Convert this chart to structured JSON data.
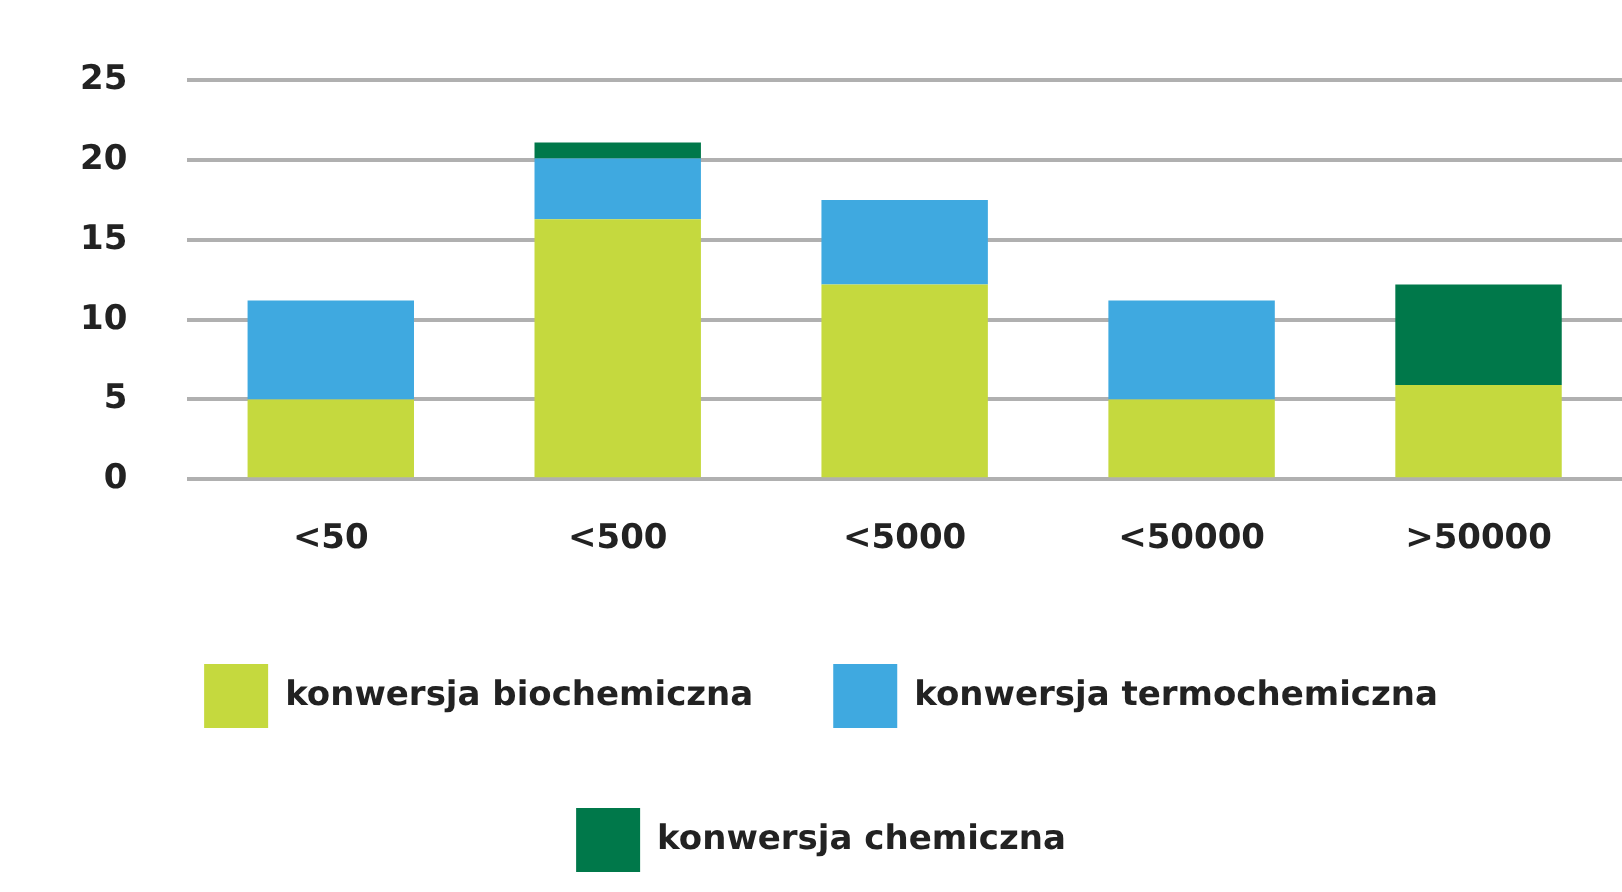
{
  "chart_data": {
    "type": "bar",
    "stacked": true,
    "categories": [
      "<50",
      "<500",
      "<5000",
      "<50000",
      ">50000"
    ],
    "series": [
      {
        "name": "konwersja biochemiczna",
        "color": "#c5d93e",
        "values": [
          5,
          16.3,
          12.2,
          5,
          5.9
        ]
      },
      {
        "name": "konwersja termochemiczna",
        "color": "#3fa9e0",
        "values": [
          6.2,
          3.8,
          5.3,
          6.2,
          null
        ]
      },
      {
        "name": "konwersja chemiczna",
        "color": "#00784a",
        "values": [
          null,
          1,
          null,
          null,
          6.3
        ]
      }
    ],
    "ylim": [
      0,
      25
    ],
    "yticks": [
      0,
      5,
      10,
      15,
      20,
      25
    ],
    "grid": "y",
    "legend": "bottom"
  }
}
